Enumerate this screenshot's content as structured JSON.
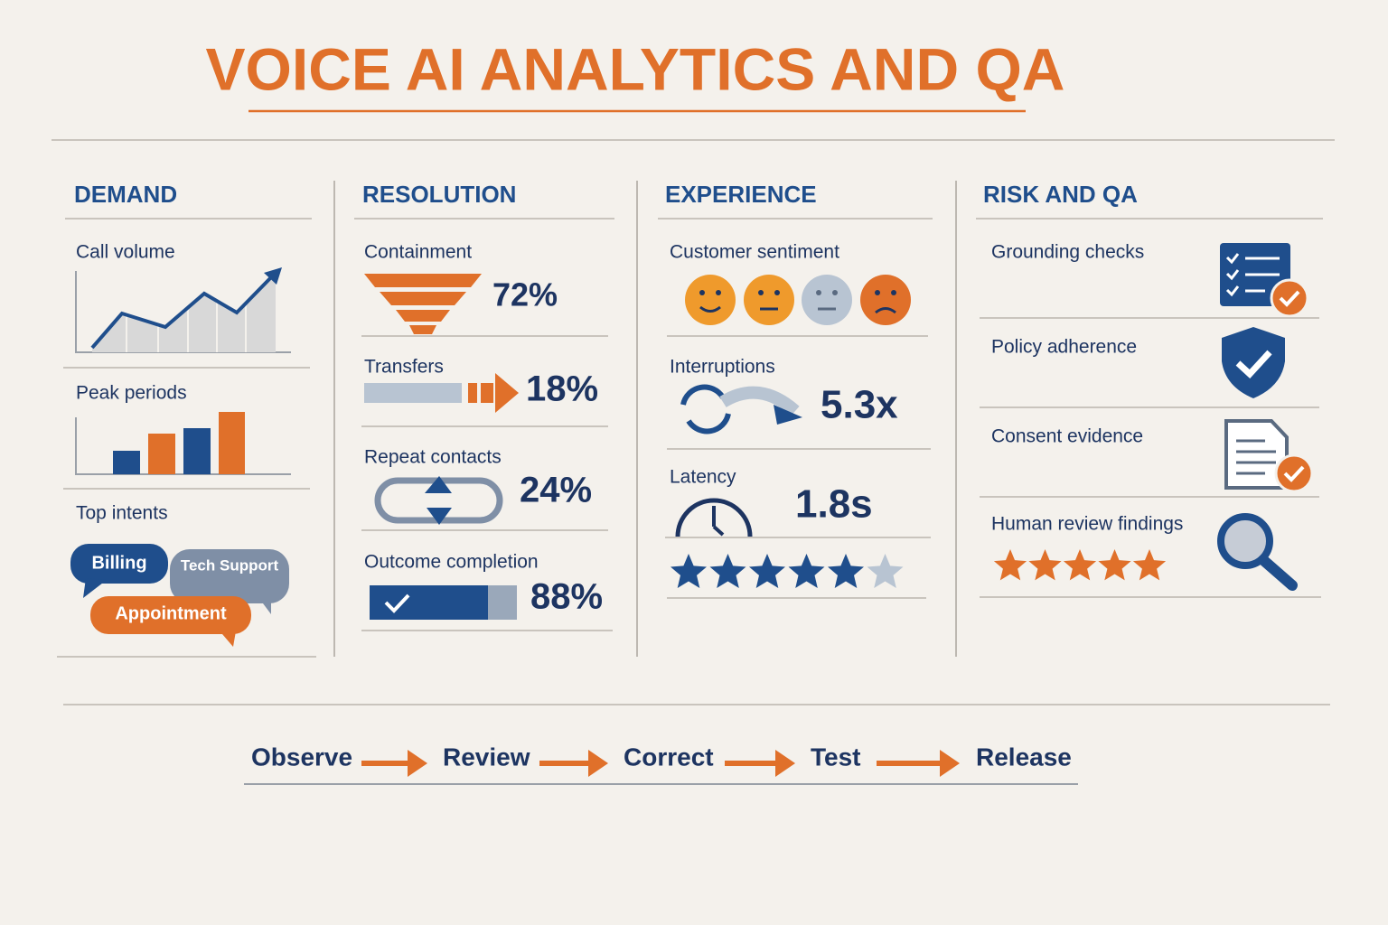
{
  "title": "VOICE AI ANALYTICS AND QA",
  "sections": [
    {
      "heading": "DEMAND",
      "items": [
        {
          "label": "Call volume"
        },
        {
          "label": "Peak periods"
        },
        {
          "label": "Top intents",
          "tags": [
            "Billing",
            "Tech Support",
            "Appointment"
          ]
        }
      ]
    },
    {
      "heading": "RESOLUTION",
      "items": [
        {
          "label": "Containment",
          "value": "72%"
        },
        {
          "label": "Transfers",
          "value": "18%"
        },
        {
          "label": "Repeat contacts",
          "value": "24%"
        },
        {
          "label": "Outcome completion",
          "value": "88%"
        }
      ]
    },
    {
      "heading": "EXPERIENCE",
      "items": [
        {
          "label": "Customer sentiment"
        },
        {
          "label": "Interruptions",
          "value": "5.3x"
        },
        {
          "label": "Latency",
          "value": "1.8s"
        }
      ]
    },
    {
      "heading": "RISK AND QA",
      "items": [
        {
          "label": "Grounding checks"
        },
        {
          "label": "Policy adherence"
        },
        {
          "label": "Consent evidence"
        },
        {
          "label": "Human review findings"
        }
      ]
    }
  ],
  "flow": [
    "Observe",
    "Review",
    "Correct",
    "Test",
    "Release"
  ]
}
